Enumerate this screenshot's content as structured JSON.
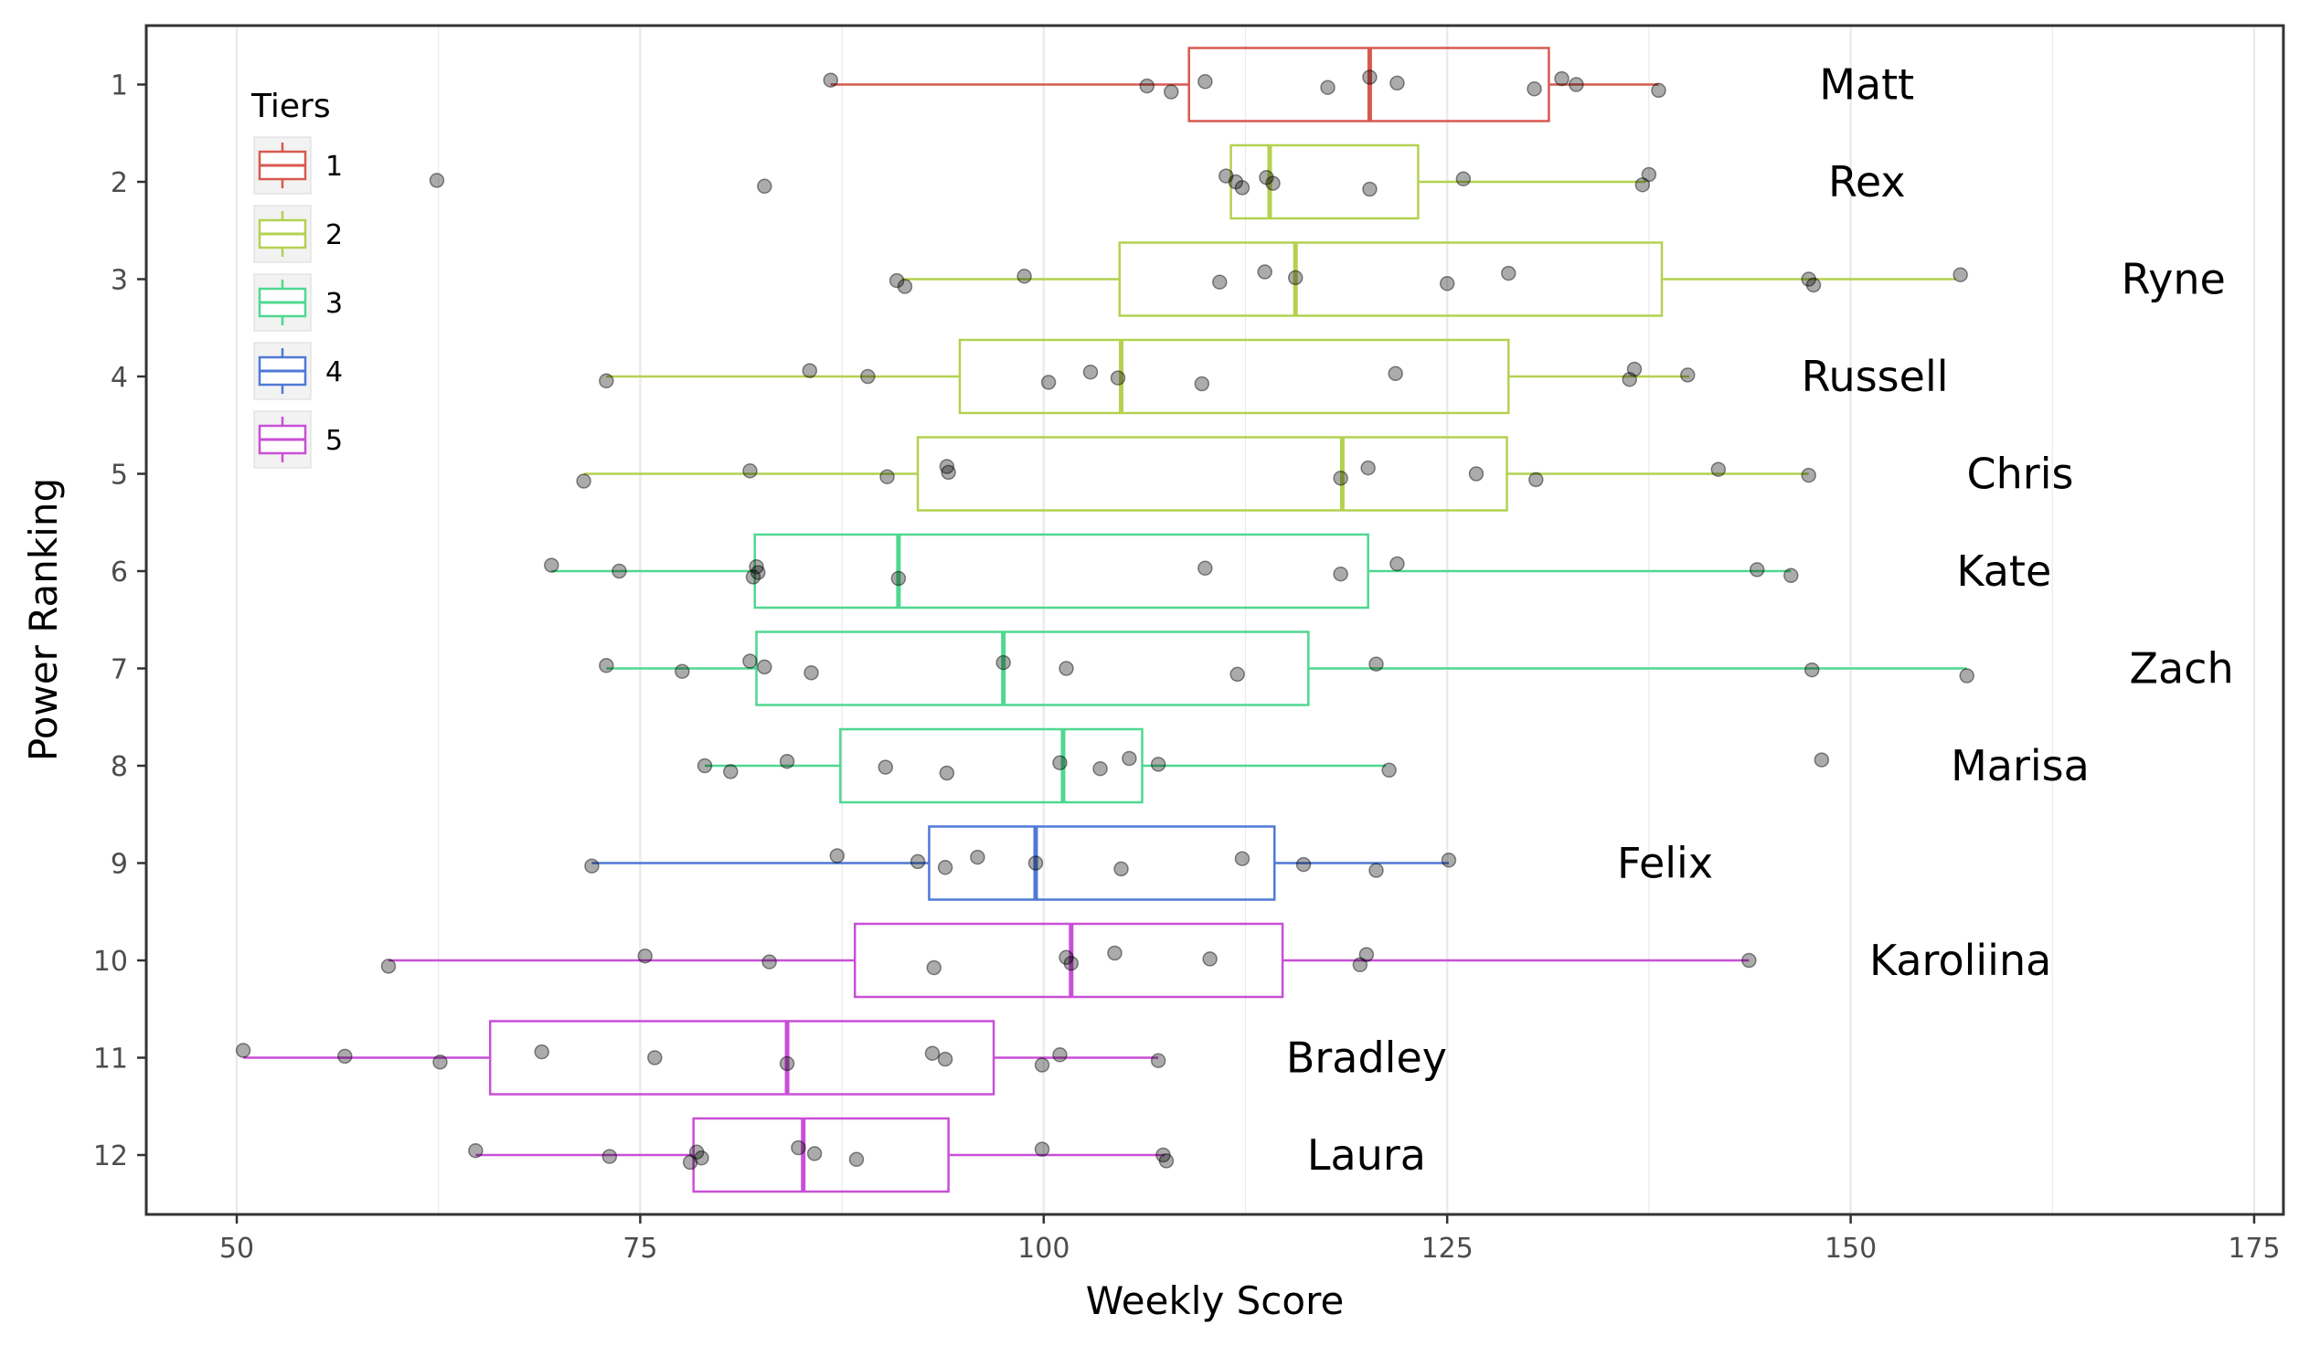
{
  "chart_data": {
    "type": "boxplot",
    "xlabel": "Weekly Score",
    "ylabel": "Power Ranking",
    "xlim": [
      45,
      176
    ],
    "x_ticks": [
      50,
      75,
      100,
      125,
      150,
      175
    ],
    "y_ticks": [
      "1",
      "2",
      "3",
      "4",
      "5",
      "6",
      "7",
      "8",
      "9",
      "10",
      "11",
      "12"
    ],
    "grid": true,
    "legend": {
      "title": "Tiers",
      "position": "top-left",
      "entries": [
        {
          "label": "1",
          "color": "#D7594F"
        },
        {
          "label": "2",
          "color": "#B4D150"
        },
        {
          "label": "3",
          "color": "#4FD88F"
        },
        {
          "label": "4",
          "color": "#4F79D6"
        },
        {
          "label": "5",
          "color": "#C94FD7"
        }
      ]
    },
    "series": [
      {
        "rank": 1,
        "name": "Matt",
        "tier": "1",
        "whisker_low": 86.8,
        "q1": 109,
        "median": 120.2,
        "q3": 131.3,
        "whisker_high": 138.1,
        "points": [
          86.8,
          106.4,
          107.9,
          110.0,
          117.6,
          120.2,
          121.9,
          130.4,
          132.1,
          133.0,
          138.1
        ],
        "label_x": 151
      },
      {
        "rank": 2,
        "name": "Rex",
        "tier": "2",
        "whisker_low": 111.6,
        "q1": 111.6,
        "median": 114.0,
        "q3": 123.2,
        "whisker_high": 137.3,
        "points": [
          62.4,
          82.7,
          111.3,
          111.9,
          112.3,
          113.8,
          114.2,
          120.2,
          126.0,
          137.1,
          137.5
        ],
        "label_x": 151
      },
      {
        "rank": 3,
        "name": "Ryne",
        "tier": "2",
        "whisker_low": 91.2,
        "q1": 104.7,
        "median": 115.6,
        "q3": 138.3,
        "whisker_high": 156.5,
        "points": [
          90.9,
          91.4,
          98.8,
          110.9,
          113.7,
          115.6,
          125.0,
          128.8,
          147.4,
          147.7,
          156.8
        ],
        "label_x": 170
      },
      {
        "rank": 4,
        "name": "Russell",
        "tier": "2",
        "whisker_low": 72.9,
        "q1": 94.8,
        "median": 104.8,
        "q3": 128.8,
        "whisker_high": 140.0,
        "points": [
          72.9,
          85.5,
          89.1,
          100.3,
          102.9,
          104.6,
          109.8,
          121.8,
          136.3,
          136.6,
          139.9
        ],
        "label_x": 151.5
      },
      {
        "rank": 5,
        "name": "Chris",
        "tier": "2",
        "whisker_low": 71.5,
        "q1": 92.2,
        "median": 118.5,
        "q3": 128.7,
        "whisker_high": 147.4,
        "points": [
          71.5,
          81.8,
          90.3,
          94.0,
          94.1,
          118.4,
          120.1,
          126.8,
          130.5,
          141.8,
          147.4
        ],
        "label_x": 160.5
      },
      {
        "rank": 6,
        "name": "Kate",
        "tier": "3",
        "whisker_low": 69.5,
        "q1": 82.1,
        "median": 91.0,
        "q3": 120.1,
        "whisker_high": 146.3,
        "points": [
          69.5,
          73.7,
          82.0,
          82.2,
          82.3,
          91.0,
          110.0,
          118.4,
          121.9,
          144.2,
          146.3
        ],
        "label_x": 159.5
      },
      {
        "rank": 7,
        "name": "Zach",
        "tier": "3",
        "whisker_low": 72.9,
        "q1": 82.2,
        "median": 97.5,
        "q3": 116.4,
        "whisker_high": 157.2,
        "points": [
          72.9,
          77.6,
          81.8,
          82.7,
          85.6,
          97.5,
          101.4,
          112.0,
          120.6,
          147.6,
          157.2
        ],
        "label_x": 170.5
      },
      {
        "rank": 8,
        "name": "Marisa",
        "tier": "3",
        "whisker_low": 79.0,
        "q1": 87.4,
        "median": 101.2,
        "q3": 106.1,
        "whisker_high": 121.2,
        "points": [
          79.0,
          80.6,
          84.1,
          90.2,
          94.0,
          101.0,
          103.5,
          105.3,
          107.1,
          121.4,
          148.2
        ],
        "label_x": 160.5
      },
      {
        "rank": 9,
        "name": "Felix",
        "tier": "4",
        "whisker_low": 72.0,
        "q1": 92.9,
        "median": 99.5,
        "q3": 114.3,
        "whisker_high": 125.1,
        "points": [
          72.0,
          87.2,
          92.2,
          93.9,
          95.9,
          99.5,
          104.8,
          112.3,
          116.1,
          120.6,
          125.1
        ],
        "label_x": 138.5
      },
      {
        "rank": 10,
        "name": "Karoliina",
        "tier": "5",
        "whisker_low": 59.4,
        "q1": 88.3,
        "median": 101.7,
        "q3": 114.8,
        "whisker_high": 143.7,
        "points": [
          59.4,
          75.3,
          83.0,
          93.2,
          101.4,
          101.7,
          104.4,
          110.3,
          119.6,
          120.0,
          143.7
        ],
        "label_x": 156.8
      },
      {
        "rank": 11,
        "name": "Bradley",
        "tier": "5",
        "whisker_low": 50.4,
        "q1": 65.7,
        "median": 84.1,
        "q3": 96.9,
        "whisker_high": 107.1,
        "points": [
          50.4,
          56.7,
          62.6,
          68.9,
          75.9,
          84.1,
          93.1,
          93.9,
          99.9,
          101.0,
          107.1
        ],
        "label_x": 120
      },
      {
        "rank": 12,
        "name": "Laura",
        "tier": "5",
        "whisker_low": 64.8,
        "q1": 78.3,
        "median": 85.1,
        "q3": 94.1,
        "whisker_high": 107.5,
        "points": [
          64.8,
          73.1,
          78.1,
          78.5,
          78.8,
          84.8,
          85.8,
          88.4,
          99.9,
          107.4,
          107.6
        ],
        "label_x": 120
      }
    ]
  }
}
